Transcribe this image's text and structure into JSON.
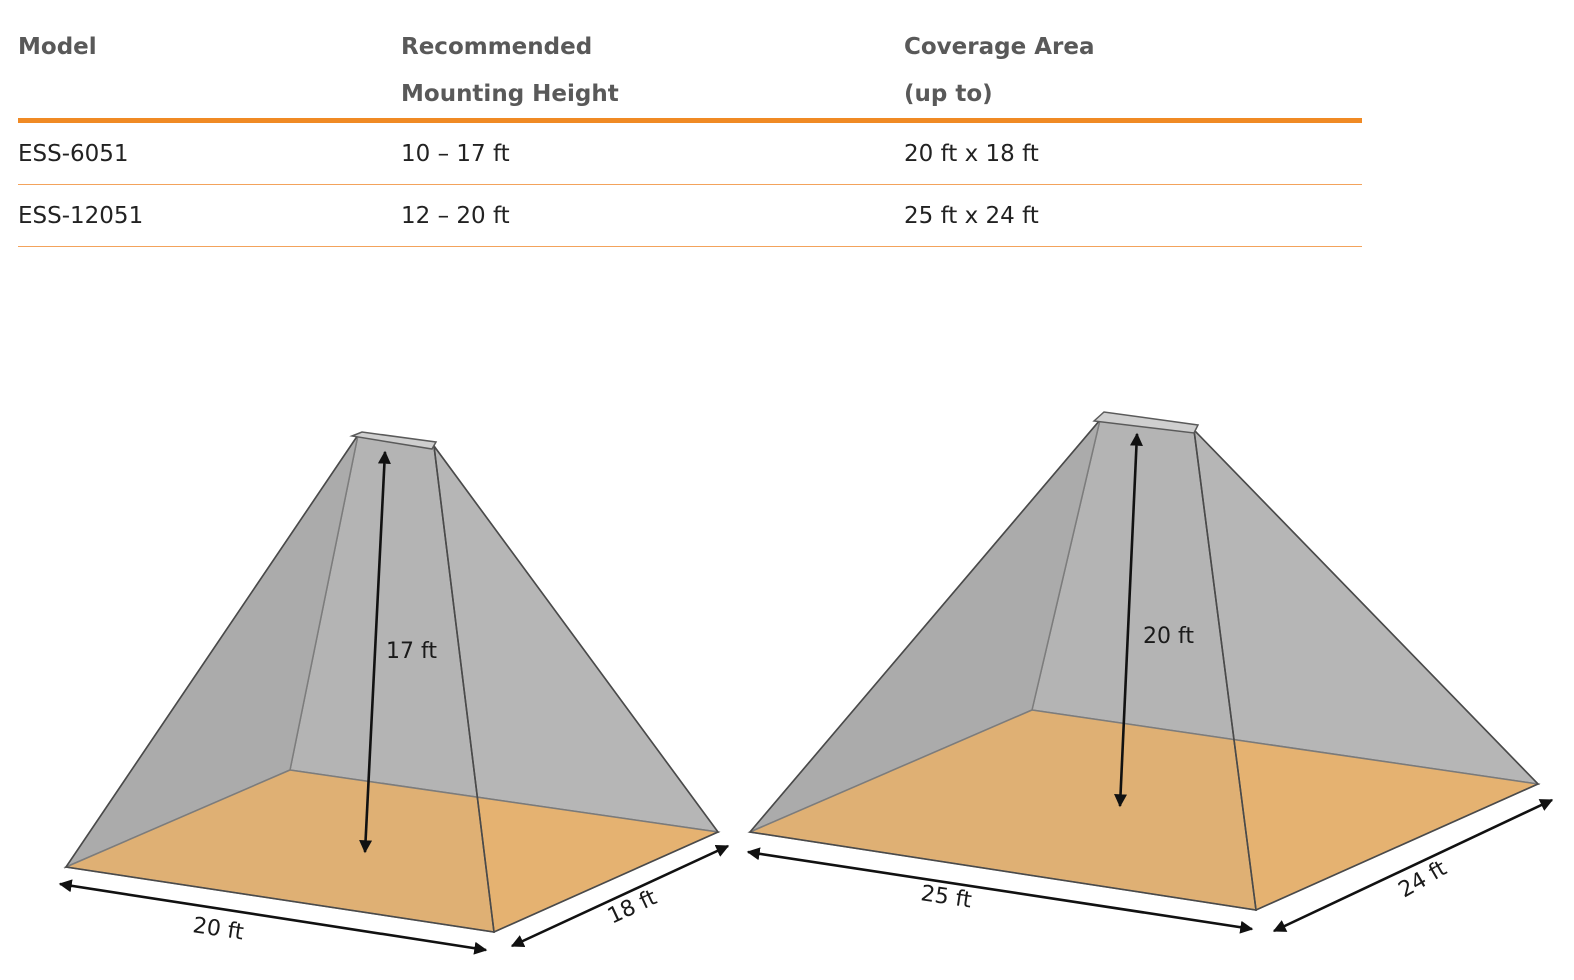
{
  "table": {
    "headers": {
      "model": "Model",
      "height_line1": "Recommended",
      "height_line2": "Mounting Height",
      "coverage_line1": "Coverage Area",
      "coverage_line2": "(up to)"
    },
    "rows": [
      {
        "model": "ESS-6051",
        "height": "10 – 17 ft",
        "coverage": "20 ft x 18 ft"
      },
      {
        "model": "ESS-12051",
        "height": "12 – 20 ft",
        "coverage": "25 ft x 24 ft"
      }
    ]
  },
  "diagrams": {
    "left": {
      "height_label": "17 ft",
      "width_label": "20 ft",
      "depth_label": "18 ft"
    },
    "right": {
      "height_label": "20 ft",
      "width_label": "25 ft",
      "depth_label": "24 ft"
    }
  },
  "colors": {
    "accent_orange": "#f08a24",
    "floor_orange": "#f9b45c",
    "cone_gray": "#bdbdbd"
  }
}
